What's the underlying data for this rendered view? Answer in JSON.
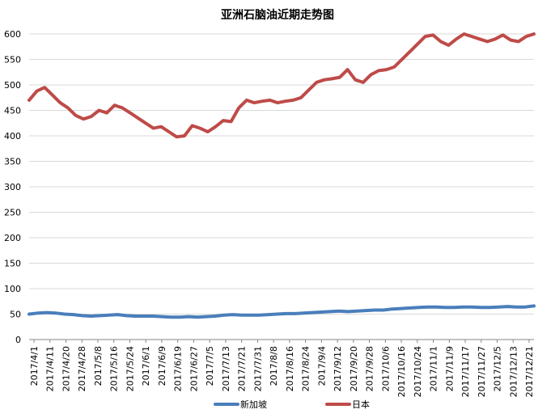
{
  "chart_data": {
    "type": "line",
    "title": "亚洲石脑油近期走势图",
    "xlabel": "",
    "ylabel": "",
    "ylim": [
      0,
      600
    ],
    "yticks": [
      0,
      50,
      100,
      150,
      200,
      250,
      300,
      350,
      400,
      450,
      500,
      550,
      600
    ],
    "grid": "horizontal",
    "legend_position": "bottom",
    "x_tick_labels": [
      "2017/4/1",
      "2017/4/11",
      "2017/4/20",
      "2017/4/28",
      "2017/5/8",
      "2017/5/16",
      "2017/5/24",
      "2017/6/1",
      "2017/6/9",
      "2017/6/19",
      "2017/6/27",
      "2017/7/5",
      "2017/7/13",
      "2017/7/21",
      "2017/7/31",
      "2017/8/8",
      "2017/8/16",
      "2017/8/24",
      "2017/9/4",
      "2017/9/12",
      "2017/9/20",
      "2017/9/28",
      "2017/10/6",
      "2017/10/16",
      "2017/10/24",
      "2017/11/1",
      "2017/11/9",
      "2017/11/17",
      "2017/11/27",
      "2017/12/5",
      "2017/12/13",
      "2017/12/21"
    ],
    "series": [
      {
        "name": "新加坡",
        "color": "#4a7ebb",
        "values": [
          50,
          52,
          53,
          52,
          50,
          49,
          47,
          46,
          47,
          48,
          49,
          47,
          46,
          46,
          46,
          45,
          44,
          44,
          45,
          44,
          45,
          46,
          48,
          49,
          48,
          48,
          48,
          49,
          50,
          51,
          51,
          52,
          53,
          54,
          55,
          56,
          55,
          56,
          57,
          58,
          58,
          60,
          61,
          62,
          63,
          64,
          64,
          63,
          63,
          64,
          64,
          63,
          63,
          64,
          65,
          64,
          64,
          66
        ]
      },
      {
        "name": "日本",
        "color": "#be4b48",
        "values": [
          470,
          488,
          495,
          480,
          465,
          455,
          440,
          433,
          438,
          450,
          445,
          460,
          455,
          445,
          435,
          425,
          415,
          418,
          408,
          398,
          400,
          420,
          415,
          408,
          418,
          430,
          428,
          455,
          470,
          465,
          468,
          470,
          465,
          468,
          470,
          475,
          490,
          505,
          510,
          512,
          515,
          530,
          510,
          505,
          520,
          528,
          530,
          535,
          550,
          565,
          580,
          595,
          598,
          585,
          578,
          590,
          600,
          595,
          590,
          585,
          590,
          598,
          588,
          585,
          595,
          600
        ]
      }
    ]
  }
}
